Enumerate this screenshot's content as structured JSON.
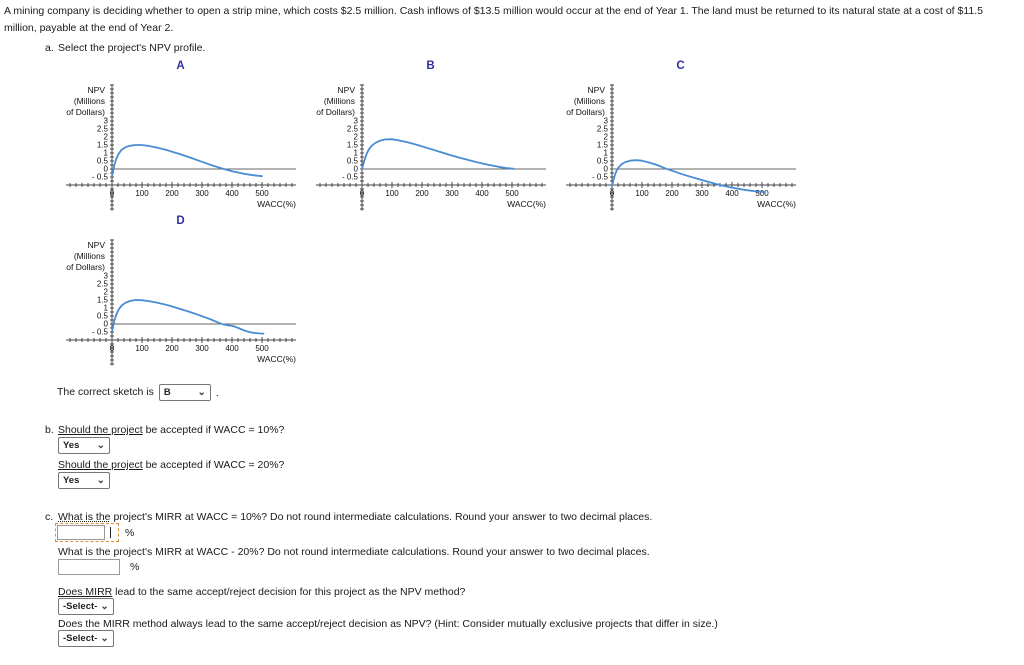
{
  "intro": {
    "line1": "A mining company is deciding whether to open a strip mine, which costs $2.5 million. Cash inflows of $13.5 million would occur at the end of Year 1. The land must be returned to its natural state at a cost of $11.5",
    "line2": "million, payable at the end of Year 2."
  },
  "part_a": {
    "label": "a.",
    "text": "Select the project's NPV profile."
  },
  "icons": {
    "chevron_down": "⌄"
  },
  "colors": {
    "curve": "#4a8cd3",
    "axis": "#444444",
    "zero_line": "#666666",
    "letter": "#2f2f9e",
    "focus_ring": "#e09038"
  },
  "chart_data": [
    {
      "type": "line",
      "label": "A",
      "ylabel_lines": [
        "NPV",
        "(Millions",
        "of Dollars)"
      ],
      "xlabel": "WACC(%)",
      "x_ticks": [
        0,
        100,
        200,
        300,
        400,
        500
      ],
      "y_ticks": [
        3,
        2.5,
        2,
        1.5,
        1,
        0.5,
        0,
        -0.5
      ],
      "xlim": [
        -150,
        610
      ],
      "ylim": [
        -2.6,
        5.3
      ],
      "x_axis_at": -1,
      "points": [
        [
          0,
          -0.42
        ],
        [
          4,
          -0.1
        ],
        [
          8,
          0.25
        ],
        [
          14,
          0.62
        ],
        [
          22,
          0.95
        ],
        [
          32,
          1.2
        ],
        [
          45,
          1.36
        ],
        [
          60,
          1.45
        ],
        [
          78,
          1.5
        ],
        [
          98,
          1.5
        ],
        [
          120,
          1.45
        ],
        [
          150,
          1.34
        ],
        [
          185,
          1.17
        ],
        [
          220,
          0.97
        ],
        [
          260,
          0.72
        ],
        [
          300,
          0.45
        ],
        [
          335,
          0.22
        ],
        [
          370,
          0.02
        ],
        [
          400,
          -0.14
        ],
        [
          440,
          -0.3
        ],
        [
          470,
          -0.39
        ],
        [
          500,
          -0.45
        ]
      ]
    },
    {
      "type": "line",
      "label": "B",
      "ylabel_lines": [
        "NPV",
        "(Millions",
        "of Dollars)"
      ],
      "xlabel": "WACC(%)",
      "x_ticks": [
        0,
        100,
        200,
        300,
        400,
        500
      ],
      "y_ticks": [
        3,
        2.5,
        2,
        1.5,
        1,
        0.5,
        0,
        -0.5
      ],
      "xlim": [
        -150,
        610
      ],
      "ylim": [
        -2.6,
        5.3
      ],
      "x_axis_at": -1,
      "points": [
        [
          0,
          0.02
        ],
        [
          4,
          0.28
        ],
        [
          9,
          0.6
        ],
        [
          15,
          0.92
        ],
        [
          22,
          1.2
        ],
        [
          32,
          1.45
        ],
        [
          45,
          1.64
        ],
        [
          60,
          1.77
        ],
        [
          78,
          1.85
        ],
        [
          98,
          1.86
        ],
        [
          120,
          1.8
        ],
        [
          150,
          1.68
        ],
        [
          185,
          1.5
        ],
        [
          220,
          1.3
        ],
        [
          260,
          1.07
        ],
        [
          300,
          0.84
        ],
        [
          340,
          0.63
        ],
        [
          380,
          0.44
        ],
        [
          420,
          0.27
        ],
        [
          455,
          0.14
        ],
        [
          480,
          0.06
        ],
        [
          505,
          0.01
        ]
      ]
    },
    {
      "type": "line",
      "label": "C",
      "ylabel_lines": [
        "NPV",
        "(Millions",
        "of Dollars)"
      ],
      "xlabel": "WACC(%)",
      "x_ticks": [
        0,
        100,
        200,
        300,
        400,
        500
      ],
      "y_ticks": [
        3,
        2.5,
        2,
        1.5,
        1,
        0.5,
        0,
        -0.5
      ],
      "xlim": [
        -150,
        610
      ],
      "ylim": [
        -2.6,
        5.3
      ],
      "x_axis_at": -1,
      "points": [
        [
          0,
          -1.05
        ],
        [
          4,
          -0.75
        ],
        [
          9,
          -0.42
        ],
        [
          15,
          -0.12
        ],
        [
          22,
          0.1
        ],
        [
          32,
          0.3
        ],
        [
          45,
          0.44
        ],
        [
          60,
          0.52
        ],
        [
          80,
          0.55
        ],
        [
          100,
          0.52
        ],
        [
          125,
          0.4
        ],
        [
          150,
          0.25
        ],
        [
          170,
          0.1
        ],
        [
          185,
          -0.01
        ],
        [
          205,
          -0.14
        ],
        [
          235,
          -0.33
        ],
        [
          270,
          -0.53
        ],
        [
          305,
          -0.72
        ],
        [
          345,
          -0.93
        ],
        [
          390,
          -1.13
        ],
        [
          440,
          -1.3
        ],
        [
          480,
          -1.4
        ],
        [
          510,
          -1.45
        ]
      ]
    },
    {
      "type": "line",
      "label": "D",
      "ylabel_lines": [
        "NPV",
        "(Millions",
        "of Dollars)"
      ],
      "xlabel": "WACC(%)",
      "x_ticks": [
        0,
        100,
        200,
        300,
        400,
        500
      ],
      "y_ticks": [
        3,
        2.5,
        2,
        1.5,
        1,
        0.5,
        0,
        -0.5
      ],
      "xlim": [
        -150,
        610
      ],
      "ylim": [
        -2.6,
        5.3
      ],
      "x_axis_at": -1,
      "points": [
        [
          0,
          -0.45
        ],
        [
          4,
          -0.12
        ],
        [
          8,
          0.22
        ],
        [
          14,
          0.58
        ],
        [
          22,
          0.9
        ],
        [
          32,
          1.15
        ],
        [
          45,
          1.33
        ],
        [
          60,
          1.44
        ],
        [
          78,
          1.5
        ],
        [
          98,
          1.49
        ],
        [
          120,
          1.44
        ],
        [
          150,
          1.34
        ],
        [
          185,
          1.18
        ],
        [
          220,
          0.99
        ],
        [
          260,
          0.75
        ],
        [
          300,
          0.49
        ],
        [
          330,
          0.28
        ],
        [
          355,
          0.08
        ],
        [
          370,
          -0.02
        ],
        [
          385,
          -0.08
        ],
        [
          400,
          -0.12
        ],
        [
          412,
          -0.18
        ],
        [
          425,
          -0.28
        ],
        [
          440,
          -0.4
        ],
        [
          455,
          -0.49
        ],
        [
          470,
          -0.55
        ],
        [
          490,
          -0.59
        ],
        [
          505,
          -0.6
        ]
      ]
    }
  ],
  "correct_sketch": {
    "text": "The correct sketch is",
    "value": "B",
    "period": "."
  },
  "part_b": {
    "label": "b.",
    "q1_u": "Should the project",
    "q1_rest": " be accepted if WACC = 10%?",
    "a1": "Yes",
    "q2_u": "Should the project",
    "q2_rest": " be accepted if WACC = 20%?",
    "a2": "Yes"
  },
  "part_c": {
    "label": "c.",
    "q1_u": "What is the",
    "q1_rest": " project's MIRR at WACC = 10%? Do not round intermediate calculations. Round your answer to two decimal places.",
    "unit": "%",
    "q2": "What is the project's MIRR at WACC - 20%? Do not round intermediate calculations. Round your answer to two decimal places.",
    "q3_u": "Does MIRR",
    "q3_rest": " lead to the same accept/reject decision for this project as the NPV method?",
    "a3": "-Select-",
    "q4": "Does the MIRR method always lead to the same accept/reject decision as NPV? (Hint: Consider mutually exclusive projects that differ in size.)",
    "a4": "-Select-"
  }
}
